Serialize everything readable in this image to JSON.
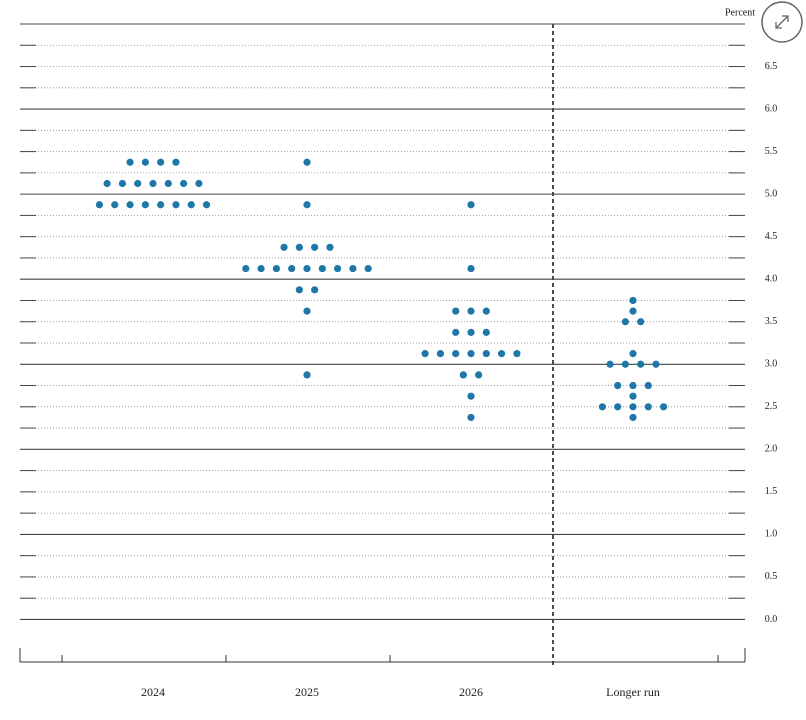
{
  "chart_data": {
    "type": "dot",
    "y_axis_label": "Percent",
    "categories": [
      "2024",
      "2025",
      "2026",
      "Longer run"
    ],
    "ylim": [
      -0.5,
      7
    ],
    "yticks": [
      {
        "value": 0,
        "label": "0.0"
      },
      0.5,
      {
        "value": 1,
        "label": "1.0"
      },
      1.5,
      {
        "value": 2,
        "label": "2.0"
      },
      2.5,
      {
        "value": 3,
        "label": "3.0"
      },
      3.5,
      {
        "value": 4,
        "label": "4.0"
      },
      4.5,
      {
        "value": 5,
        "label": "5.0"
      },
      5.5,
      {
        "value": 6,
        "label": "6.0"
      },
      6.5
    ],
    "minor_yticks": [
      0.25,
      0.75,
      1.25,
      1.75,
      2.25,
      2.75,
      3.25,
      3.75,
      4.25,
      4.75,
      5.25,
      5.75,
      6.25,
      6.75,
      7
    ],
    "grid": true,
    "color": "#1f77a8",
    "dots": [
      [
        {
          "value": 5.375,
          "count": 4
        },
        {
          "value": 5.125,
          "count": 7
        },
        {
          "value": 4.875,
          "count": 8
        }
      ],
      [
        {
          "value": 5.375,
          "count": 1
        },
        {
          "value": 4.875,
          "count": 1
        },
        {
          "value": 4.375,
          "count": 4
        },
        {
          "value": 4.125,
          "count": 9
        },
        {
          "value": 3.875,
          "count": 2
        },
        {
          "value": 3.625,
          "count": 1
        },
        {
          "value": 2.875,
          "count": 1
        }
      ],
      [
        {
          "value": 4.875,
          "count": 1
        },
        {
          "value": 4.125,
          "count": 1
        },
        {
          "value": 3.625,
          "count": 3
        },
        {
          "value": 3.375,
          "count": 3
        },
        {
          "value": 3.125,
          "count": 7
        },
        {
          "value": 2.875,
          "count": 2
        },
        {
          "value": 2.625,
          "count": 1
        },
        {
          "value": 2.375,
          "count": 1
        }
      ],
      [
        {
          "value": 3.75,
          "count": 1
        },
        {
          "value": 3.625,
          "count": 1
        },
        {
          "value": 3.5,
          "count": 2
        },
        {
          "value": 3.125,
          "count": 1
        },
        {
          "value": 3,
          "count": 4
        },
        {
          "value": 2.75,
          "count": 3
        },
        {
          "value": 2.625,
          "count": 1
        },
        {
          "value": 2.5,
          "count": 5
        },
        {
          "value": 2.375,
          "count": 1
        }
      ]
    ]
  }
}
